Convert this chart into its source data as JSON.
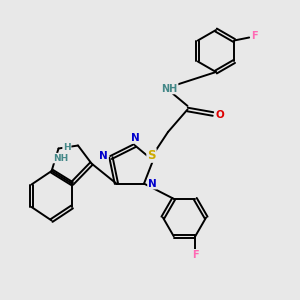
{
  "bg_color": "#e8e8e8",
  "atom_colors": {
    "C": "#000000",
    "N": "#0000cc",
    "O": "#dd0000",
    "S": "#ccaa00",
    "F": "#ff69b4",
    "H_teal": "#448888",
    "NH": "#448888"
  },
  "figsize": [
    3.0,
    3.0
  ],
  "dpi": 100
}
